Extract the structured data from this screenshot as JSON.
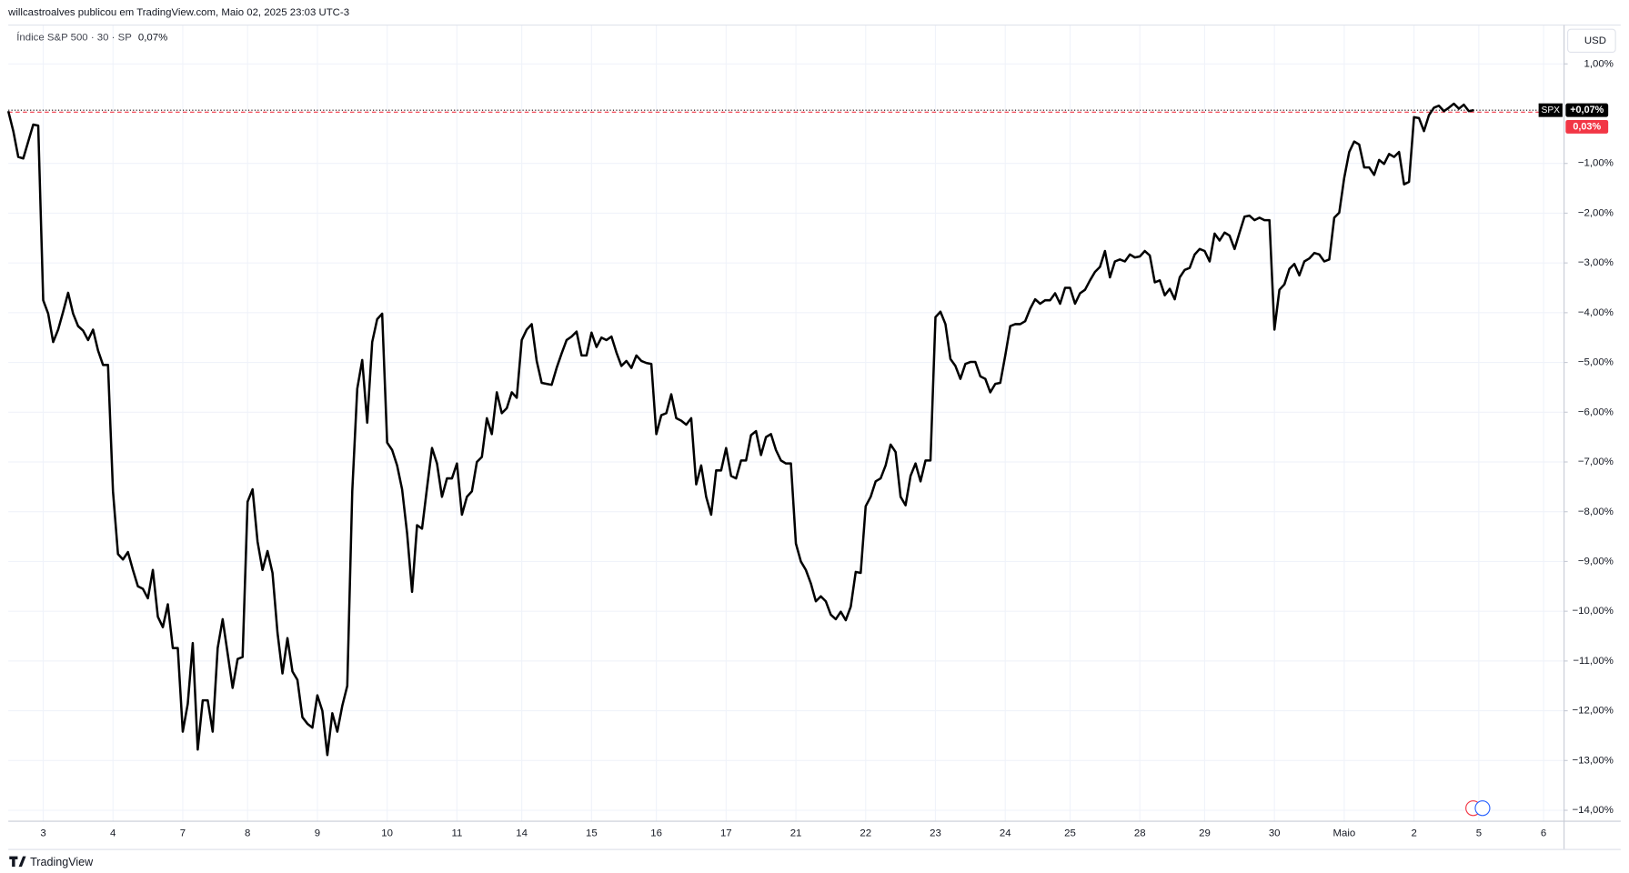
{
  "header": "willcastroalves publicou em TradingView.com, Maio 02, 2025 23:03 UTC-3",
  "footer": "TradingView",
  "chart_data": {
    "type": "line",
    "legend": {
      "name": "Índice S&P 500 · 30 · SP",
      "value": "0,07%"
    },
    "currency": "USD",
    "series": [
      {
        "name": "SPX",
        "color": "#000000",
        "values": [
          0.05,
          -0.35,
          -0.87,
          -0.9,
          -0.56,
          -0.22,
          -0.24,
          -3.75,
          -4.02,
          -4.59,
          -4.34,
          -3.98,
          -3.6,
          -4.02,
          -4.27,
          -4.36,
          -4.55,
          -4.34,
          -4.76,
          -5.05,
          -5.05,
          -7.59,
          -8.85,
          -8.96,
          -8.81,
          -9.17,
          -9.5,
          -9.55,
          -9.74,
          -9.17,
          -10.11,
          -10.32,
          -9.86,
          -10.74,
          -10.74,
          -12.42,
          -11.86,
          -10.64,
          -12.78,
          -11.79,
          -11.79,
          -12.42,
          -10.74,
          -10.16,
          -10.85,
          -11.54,
          -10.96,
          -10.92,
          -7.8,
          -7.55,
          -8.6,
          -9.17,
          -8.79,
          -9.23,
          -10.43,
          -11.25,
          -10.54,
          -11.21,
          -11.38,
          -12.13,
          -12.26,
          -12.34,
          -11.69,
          -12.0,
          -12.89,
          -12.05,
          -12.42,
          -11.9,
          -11.5,
          -7.59,
          -5.53,
          -4.95,
          -6.21,
          -4.59,
          -4.13,
          -4.02,
          -6.61,
          -6.76,
          -7.07,
          -7.55,
          -8.43,
          -9.61,
          -8.27,
          -8.34,
          -7.52,
          -6.72,
          -7.03,
          -7.7,
          -7.33,
          -7.33,
          -7.03,
          -8.06,
          -7.7,
          -7.59,
          -7.0,
          -6.9,
          -6.12,
          -6.44,
          -5.6,
          -6.02,
          -5.92,
          -5.6,
          -5.71,
          -4.55,
          -4.34,
          -4.23,
          -4.97,
          -5.41,
          -5.43,
          -5.45,
          -5.11,
          -4.82,
          -4.55,
          -4.48,
          -4.38,
          -4.86,
          -4.86,
          -4.4,
          -4.69,
          -4.5,
          -4.55,
          -4.48,
          -4.8,
          -5.07,
          -4.97,
          -5.11,
          -4.86,
          -4.97,
          -5.01,
          -5.03,
          -6.44,
          -6.06,
          -6.02,
          -5.64,
          -6.12,
          -6.17,
          -6.25,
          -6.12,
          -7.45,
          -7.07,
          -7.7,
          -8.06,
          -7.17,
          -7.17,
          -6.72,
          -7.28,
          -7.33,
          -6.97,
          -6.97,
          -6.46,
          -6.38,
          -6.86,
          -6.5,
          -6.44,
          -6.76,
          -6.97,
          -7.03,
          -7.03,
          -8.64,
          -9.0,
          -9.17,
          -9.44,
          -9.8,
          -9.7,
          -9.8,
          -10.07,
          -10.16,
          -10.01,
          -10.18,
          -9.91,
          -9.21,
          -9.23,
          -7.89,
          -7.7,
          -7.39,
          -7.33,
          -7.07,
          -6.65,
          -6.8,
          -7.7,
          -7.87,
          -7.28,
          -7.03,
          -7.39,
          -6.97,
          -6.97,
          -4.09,
          -3.98,
          -4.23,
          -4.93,
          -5.07,
          -5.33,
          -5.03,
          -4.99,
          -4.99,
          -5.28,
          -5.33,
          -5.6,
          -5.43,
          -5.41,
          -4.86,
          -4.27,
          -4.23,
          -4.23,
          -4.17,
          -3.92,
          -3.73,
          -3.82,
          -3.75,
          -3.75,
          -3.61,
          -3.82,
          -3.5,
          -3.5,
          -3.82,
          -3.61,
          -3.54,
          -3.35,
          -3.18,
          -3.08,
          -2.76,
          -3.29,
          -2.97,
          -2.93,
          -2.97,
          -2.83,
          -2.89,
          -2.87,
          -2.76,
          -2.85,
          -3.39,
          -3.35,
          -3.65,
          -3.52,
          -3.73,
          -3.29,
          -3.14,
          -3.1,
          -2.83,
          -2.72,
          -2.76,
          -2.97,
          -2.41,
          -2.55,
          -2.39,
          -2.45,
          -2.72,
          -2.39,
          -2.07,
          -2.05,
          -2.14,
          -2.09,
          -2.14,
          -2.14,
          -4.34,
          -3.54,
          -3.43,
          -3.12,
          -3.02,
          -3.25,
          -2.97,
          -2.91,
          -2.8,
          -2.83,
          -2.97,
          -2.93,
          -2.09,
          -1.99,
          -1.29,
          -0.77,
          -0.56,
          -0.62,
          -1.08,
          -1.08,
          -1.23,
          -0.93,
          -1.01,
          -0.81,
          -0.87,
          -0.77,
          -1.42,
          -1.37,
          -0.07,
          -0.09,
          -0.35,
          -0.03,
          0.12,
          0.16,
          0.05,
          0.12,
          0.2,
          0.1,
          0.18,
          0.05,
          0.07
        ]
      }
    ],
    "price_lines": [
      {
        "name": "SPX",
        "value": 0.07,
        "label": "+0,07%",
        "color": "#000000"
      },
      {
        "value": 0.03,
        "label": "0,03%",
        "color": "#f23645"
      }
    ],
    "xlim": [
      0,
      312
    ],
    "xticks": [
      {
        "value": 7,
        "label": "3"
      },
      {
        "value": 21,
        "label": "4"
      },
      {
        "value": 35,
        "label": "7"
      },
      {
        "value": 48,
        "label": "8"
      },
      {
        "value": 62,
        "label": "9"
      },
      {
        "value": 76,
        "label": "10"
      },
      {
        "value": 90,
        "label": "11"
      },
      {
        "value": 103,
        "label": "14"
      },
      {
        "value": 117,
        "label": "15"
      },
      {
        "value": 130,
        "label": "16"
      },
      {
        "value": 144,
        "label": "17"
      },
      {
        "value": 158,
        "label": "21"
      },
      {
        "value": 172,
        "label": "22"
      },
      {
        "value": 186,
        "label": "23"
      },
      {
        "value": 200,
        "label": "24"
      },
      {
        "value": 213,
        "label": "25"
      },
      {
        "value": 227,
        "label": "28"
      },
      {
        "value": 240,
        "label": "29"
      },
      {
        "value": 254,
        "label": "30"
      },
      {
        "value": 268,
        "label": "Maio"
      },
      {
        "value": 282,
        "label": "2"
      },
      {
        "value": 295,
        "label": "5"
      },
      {
        "value": 308,
        "label": "6"
      }
    ],
    "ylim": [
      -14.21,
      1.78
    ],
    "yticks": [
      {
        "value": 1,
        "label": "1,00%"
      },
      {
        "value": -1,
        "label": "−1,00%"
      },
      {
        "value": -2,
        "label": "−2,00%"
      },
      {
        "value": -3,
        "label": "−3,00%"
      },
      {
        "value": -4,
        "label": "−4,00%"
      },
      {
        "value": -5,
        "label": "−5,00%"
      },
      {
        "value": -6,
        "label": "−6,00%"
      },
      {
        "value": -7,
        "label": "−7,00%"
      },
      {
        "value": -8,
        "label": "−8,00%"
      },
      {
        "value": -9,
        "label": "−9,00%"
      },
      {
        "value": -10,
        "label": "−10,00%"
      },
      {
        "value": -11,
        "label": "−11,00%"
      },
      {
        "value": -12,
        "label": "−12,00%"
      },
      {
        "value": -13,
        "label": "−13,00%"
      },
      {
        "value": -14,
        "label": "−14,00%"
      }
    ],
    "grid": true
  }
}
